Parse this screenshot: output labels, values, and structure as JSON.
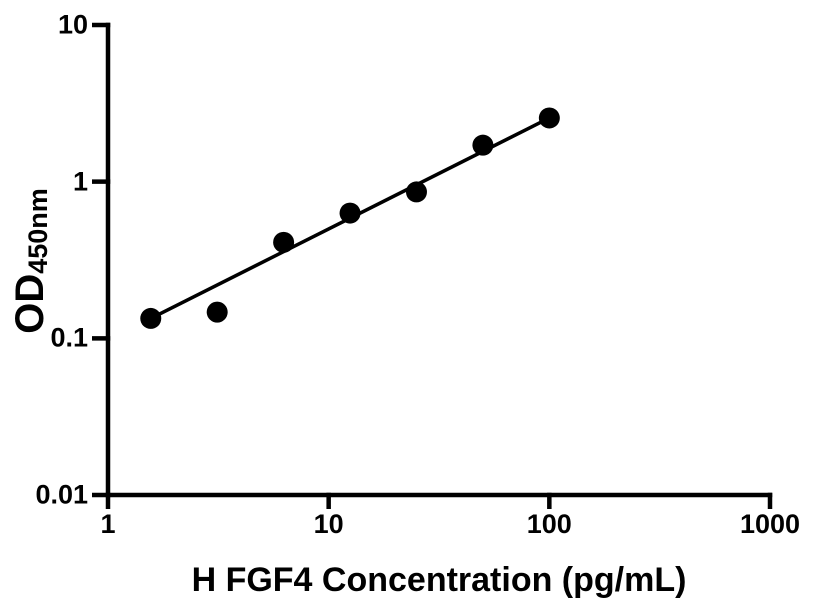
{
  "figure": {
    "background_color": "#ffffff",
    "foreground_color": "#000000"
  },
  "chart_data": {
    "type": "scatter",
    "title": "",
    "xlabel": "H FGF4 Concentration (pg/mL)",
    "ylabel": "OD",
    "ylabel_subscript": "450nm",
    "x_scale": "log",
    "y_scale": "log",
    "xlim": [
      1,
      1000
    ],
    "ylim": [
      0.01,
      10
    ],
    "x_ticks": [
      1,
      10,
      100,
      1000
    ],
    "x_tick_labels": [
      "1",
      "10",
      "100",
      "1000"
    ],
    "y_ticks": [
      10,
      1,
      0.1,
      0.01
    ],
    "y_tick_labels": [
      "10",
      "1",
      "0.1",
      "0.01"
    ],
    "grid": false,
    "legend_position": "none",
    "marker_color": "#000000",
    "line_color": "#000000",
    "series": [
      {
        "name": "standard-points",
        "type": "scatter",
        "x": [
          1.5625,
          3.125,
          6.25,
          12.5,
          25,
          50,
          100
        ],
        "y": [
          0.134,
          0.147,
          0.41,
          0.63,
          0.86,
          1.71,
          2.55
        ]
      },
      {
        "name": "fit-line",
        "type": "line",
        "x": [
          1.5625,
          100
        ],
        "y": [
          0.134,
          2.55
        ]
      }
    ]
  }
}
